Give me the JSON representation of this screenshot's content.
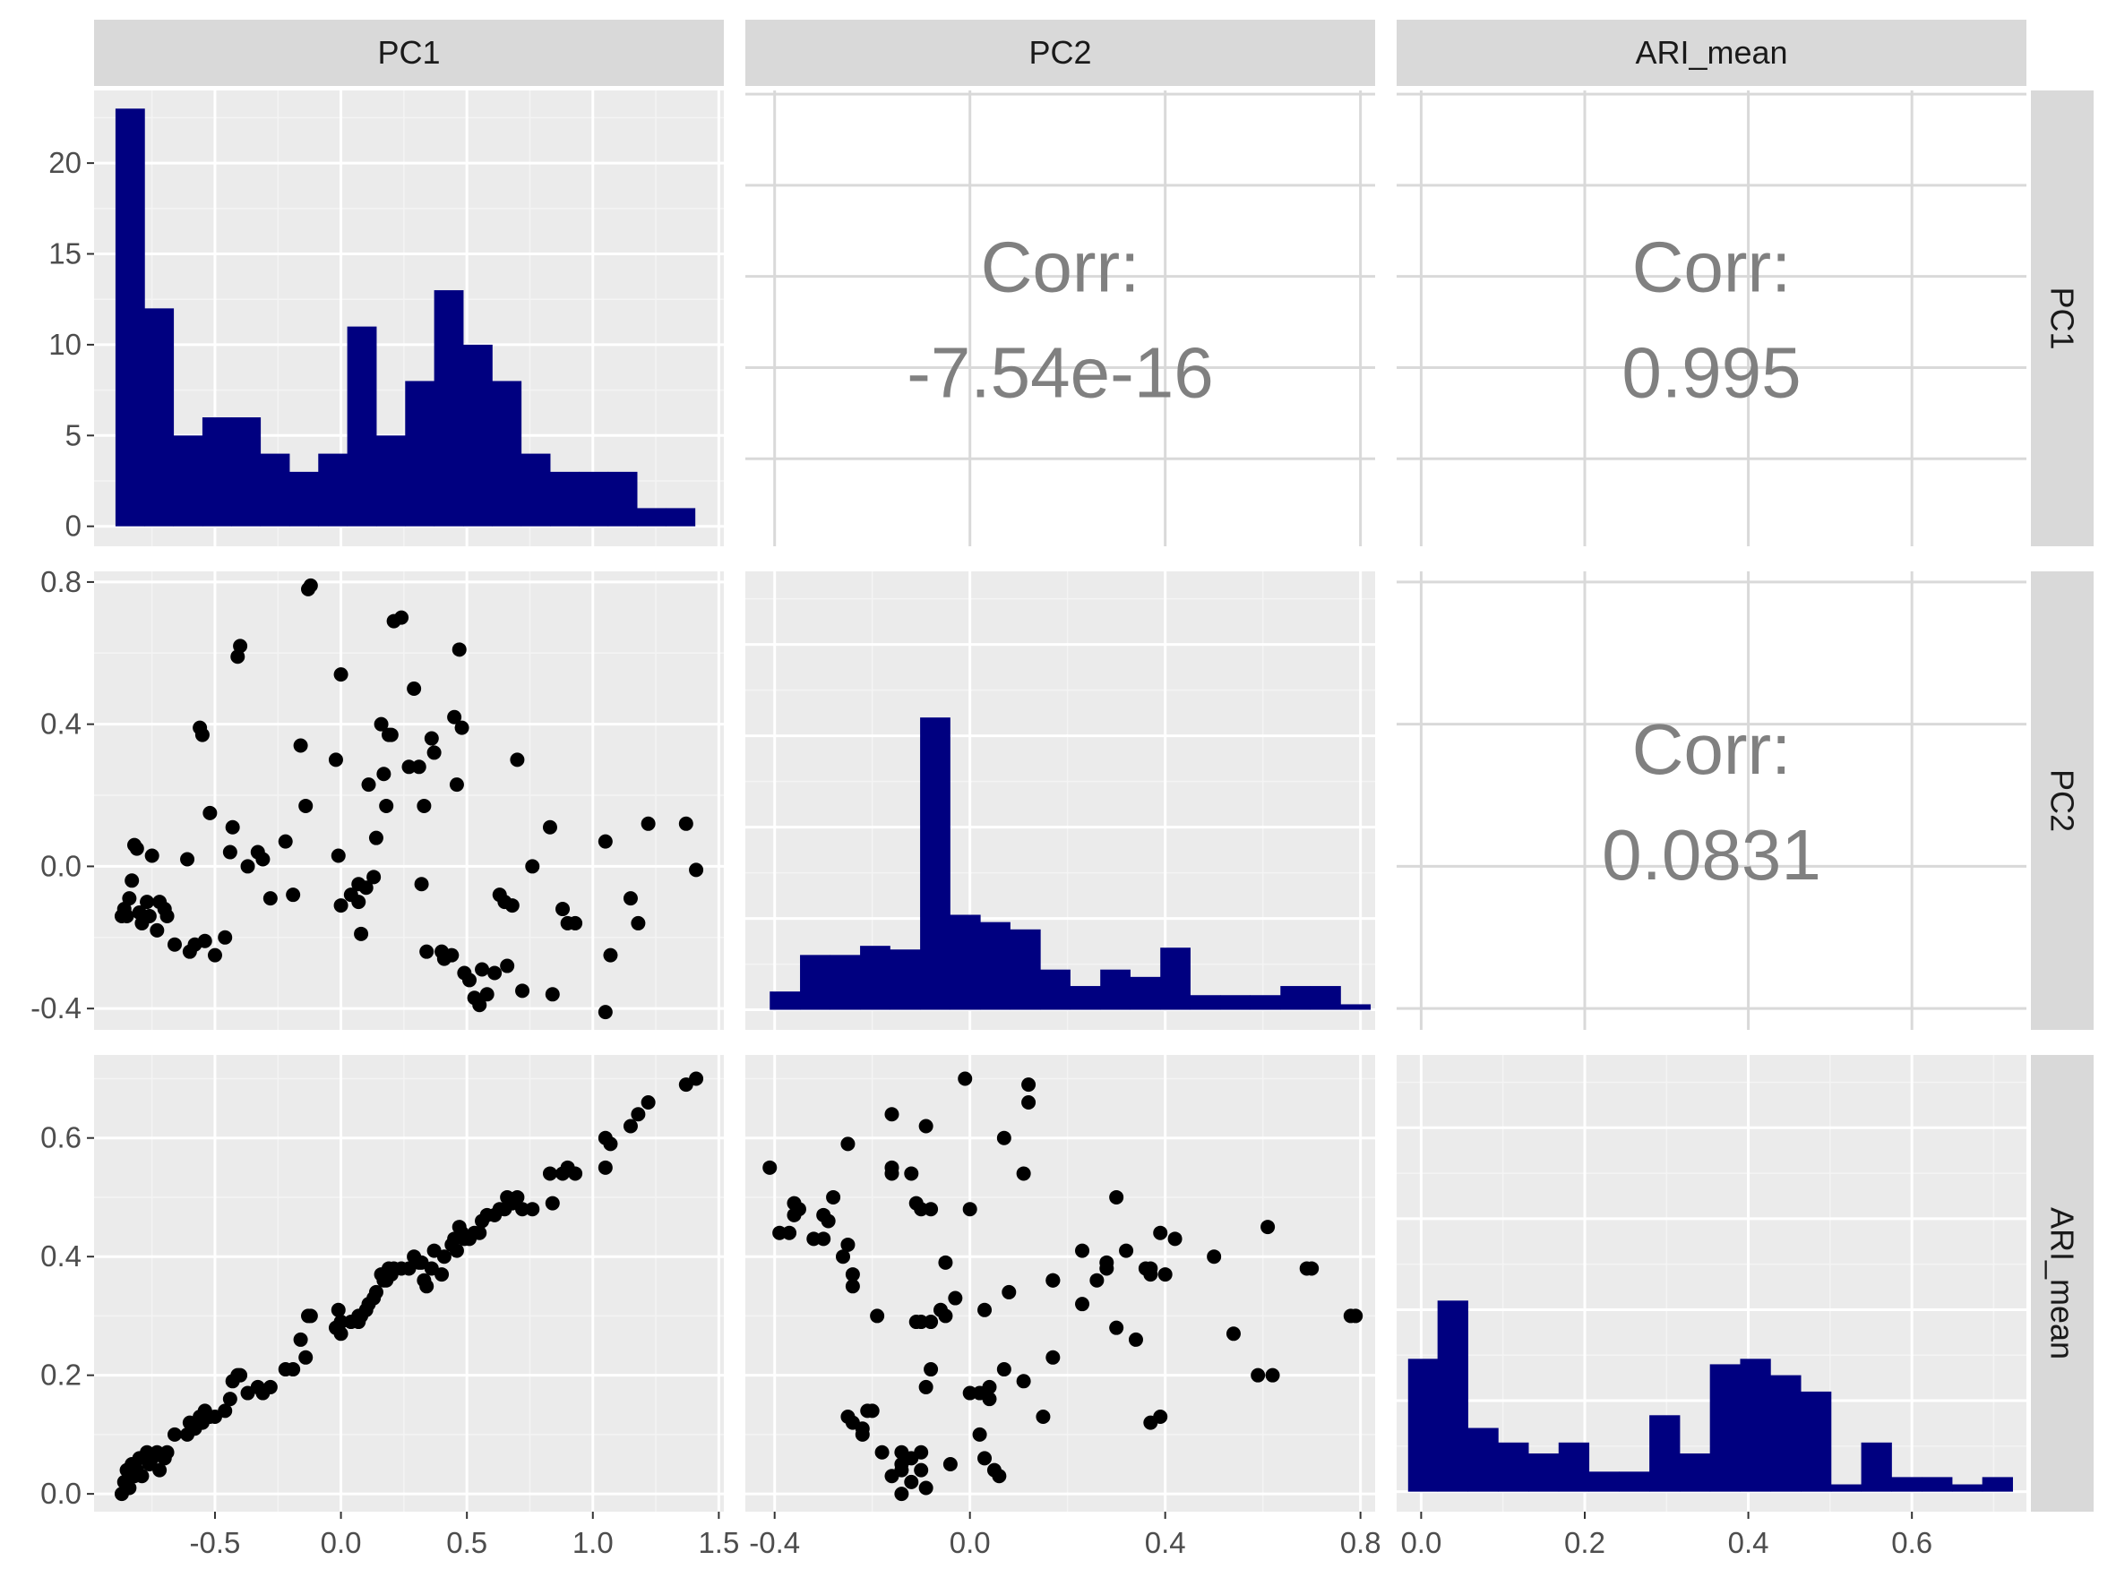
{
  "variables": [
    "PC1",
    "PC2",
    "ARI_mean"
  ],
  "colors": {
    "panel_bg": "#ebebeb",
    "grid_major": "#ffffff",
    "grid_minor": "#f4f4f4",
    "strip_bg": "#d9d9d9",
    "bar_fill": "#000080",
    "point": "#000000",
    "corr_text": "#808080",
    "axis_text": "#4d4d4d",
    "upper_grid": "#d9d9d9"
  },
  "axes": {
    "PC1": {
      "range": [
        -0.98,
        1.52
      ],
      "ticks": [
        -0.5,
        0.0,
        0.5,
        1.0,
        1.5
      ],
      "tick_labels": [
        "-0.5",
        "0.0",
        "0.5",
        "1.0",
        "1.5"
      ]
    },
    "PC2": {
      "range": [
        -0.46,
        0.83
      ],
      "ticks": [
        -0.4,
        0.0,
        0.4,
        0.8
      ],
      "tick_labels": [
        "-0.4",
        "0.0",
        "0.4",
        "0.8"
      ]
    },
    "ARI_mean": {
      "range": [
        -0.03,
        0.74
      ],
      "ticks": [
        0.0,
        0.2,
        0.4,
        0.6
      ],
      "tick_labels": [
        "0.0",
        "0.2",
        "0.4",
        "0.6"
      ]
    }
  },
  "hist_count_axis": {
    "range": [
      -1.1,
      24.0
    ],
    "ticks": [
      0,
      5,
      10,
      15,
      20
    ],
    "tick_labels": [
      "0",
      "5",
      "10",
      "15",
      "20"
    ]
  },
  "chart_data": {
    "type": "scatter",
    "layout": "pairs-matrix",
    "correlations": [
      {
        "row": "PC1",
        "col": "PC2",
        "label": "Corr:",
        "value": "-7.54e-16"
      },
      {
        "row": "PC1",
        "col": "ARI_mean",
        "label": "Corr:",
        "value": "0.995"
      },
      {
        "row": "PC2",
        "col": "ARI_mean",
        "label": "Corr:",
        "value": "0.0831"
      }
    ],
    "histograms": {
      "PC1": {
        "bins": [
          [
            -0.895,
            -0.78,
            23
          ],
          [
            -0.78,
            -0.665,
            12
          ],
          [
            -0.665,
            -0.55,
            5
          ],
          [
            -0.55,
            -0.435,
            6
          ],
          [
            -0.435,
            -0.32,
            6
          ],
          [
            -0.32,
            -0.205,
            4
          ],
          [
            -0.205,
            -0.09,
            3
          ],
          [
            -0.09,
            0.025,
            4
          ],
          [
            0.025,
            0.14,
            11
          ],
          [
            0.14,
            0.255,
            5
          ],
          [
            0.255,
            0.37,
            8
          ],
          [
            0.37,
            0.485,
            13
          ],
          [
            0.485,
            0.6,
            10
          ],
          [
            0.6,
            0.715,
            8
          ],
          [
            0.715,
            0.83,
            4
          ],
          [
            0.83,
            0.945,
            3
          ],
          [
            0.945,
            1.06,
            3
          ],
          [
            1.06,
            1.175,
            3
          ],
          [
            1.175,
            1.29,
            1
          ],
          [
            1.29,
            1.405,
            1
          ]
        ]
      },
      "PC2": {
        "bins": [
          [
            -0.41,
            -0.348,
            1
          ],
          [
            -0.348,
            -0.287,
            3
          ],
          [
            -0.287,
            -0.225,
            3
          ],
          [
            -0.225,
            -0.164,
            3.5
          ],
          [
            -0.164,
            -0.102,
            3.3
          ],
          [
            -0.102,
            -0.041,
            16
          ],
          [
            -0.041,
            0.021,
            5.2
          ],
          [
            0.021,
            0.082,
            4.8
          ],
          [
            0.082,
            0.144,
            4.4
          ],
          [
            0.144,
            0.205,
            2.2
          ],
          [
            0.205,
            0.267,
            1.3
          ],
          [
            0.267,
            0.328,
            2.2
          ],
          [
            0.328,
            0.39,
            1.8
          ],
          [
            0.39,
            0.451,
            3.4
          ],
          [
            0.451,
            0.513,
            0.8
          ],
          [
            0.513,
            0.574,
            0.8
          ],
          [
            0.574,
            0.636,
            0.8
          ],
          [
            0.636,
            0.697,
            1.3
          ],
          [
            0.697,
            0.759,
            1.3
          ],
          [
            0.759,
            0.82,
            0.3
          ]
        ]
      },
      "ARI_mean": {
        "bins": [
          [
            -0.016,
            0.02,
            7.3
          ],
          [
            0.02,
            0.057,
            10.5
          ],
          [
            0.057,
            0.094,
            3.5
          ],
          [
            0.094,
            0.131,
            2.7
          ],
          [
            0.131,
            0.168,
            2.1
          ],
          [
            0.168,
            0.205,
            2.7
          ],
          [
            0.205,
            0.242,
            1.1
          ],
          [
            0.242,
            0.279,
            1.1
          ],
          [
            0.279,
            0.316,
            4.2
          ],
          [
            0.316,
            0.353,
            2.1
          ],
          [
            0.353,
            0.39,
            7.0
          ],
          [
            0.39,
            0.427,
            7.3
          ],
          [
            0.427,
            0.464,
            6.4
          ],
          [
            0.464,
            0.501,
            5.5
          ],
          [
            0.501,
            0.538,
            0.4
          ],
          [
            0.538,
            0.575,
            2.7
          ],
          [
            0.575,
            0.612,
            0.8
          ],
          [
            0.612,
            0.649,
            0.8
          ],
          [
            0.649,
            0.686,
            0.4
          ],
          [
            0.686,
            0.723,
            0.8
          ]
        ]
      }
    },
    "points": [
      [
        -0.87,
        -0.14,
        0.0
      ],
      [
        -0.86,
        -0.12,
        0.02
      ],
      [
        -0.85,
        -0.14,
        0.04
      ],
      [
        -0.84,
        -0.09,
        0.01
      ],
      [
        -0.83,
        -0.04,
        0.05
      ],
      [
        -0.82,
        0.06,
        0.03
      ],
      [
        -0.81,
        0.05,
        0.04
      ],
      [
        -0.8,
        -0.13,
        0.06
      ],
      [
        -0.79,
        -0.16,
        0.03
      ],
      [
        -0.77,
        -0.1,
        0.07
      ],
      [
        -0.76,
        -0.14,
        0.05
      ],
      [
        -0.75,
        0.03,
        0.06
      ],
      [
        -0.73,
        -0.18,
        0.07
      ],
      [
        -0.72,
        -0.1,
        0.04
      ],
      [
        -0.7,
        -0.12,
        0.06
      ],
      [
        -0.69,
        -0.14,
        0.07
      ],
      [
        -0.66,
        -0.22,
        0.1
      ],
      [
        -0.61,
        0.02,
        0.1
      ],
      [
        -0.6,
        -0.24,
        0.12
      ],
      [
        -0.58,
        -0.22,
        0.11
      ],
      [
        -0.56,
        0.39,
        0.13
      ],
      [
        -0.55,
        0.37,
        0.12
      ],
      [
        -0.54,
        -0.21,
        0.14
      ],
      [
        -0.52,
        0.15,
        0.13
      ],
      [
        -0.5,
        -0.25,
        0.13
      ],
      [
        -0.46,
        -0.2,
        0.14
      ],
      [
        -0.43,
        0.11,
        0.19
      ],
      [
        -0.44,
        0.04,
        0.16
      ],
      [
        -0.41,
        0.59,
        0.2
      ],
      [
        -0.4,
        0.62,
        0.2
      ],
      [
        -0.37,
        0.0,
        0.17
      ],
      [
        -0.33,
        0.04,
        0.18
      ],
      [
        -0.31,
        0.02,
        0.17
      ],
      [
        -0.28,
        -0.09,
        0.18
      ],
      [
        -0.22,
        0.07,
        0.21
      ],
      [
        -0.19,
        -0.08,
        0.21
      ],
      [
        -0.16,
        0.34,
        0.26
      ],
      [
        -0.14,
        0.17,
        0.23
      ],
      [
        -0.13,
        0.78,
        0.3
      ],
      [
        -0.12,
        0.79,
        0.3
      ],
      [
        -0.02,
        0.3,
        0.28
      ],
      [
        -0.01,
        0.03,
        0.31
      ],
      [
        0.0,
        0.54,
        0.27
      ],
      [
        0.0,
        -0.11,
        0.29
      ],
      [
        0.04,
        -0.08,
        0.29
      ],
      [
        0.07,
        -0.1,
        0.29
      ],
      [
        0.07,
        -0.05,
        0.3
      ],
      [
        0.08,
        -0.19,
        0.3
      ],
      [
        0.1,
        -0.06,
        0.31
      ],
      [
        0.11,
        0.23,
        0.32
      ],
      [
        0.13,
        -0.03,
        0.33
      ],
      [
        0.14,
        0.08,
        0.34
      ],
      [
        0.16,
        0.4,
        0.37
      ],
      [
        0.17,
        0.26,
        0.36
      ],
      [
        0.18,
        0.17,
        0.36
      ],
      [
        0.19,
        0.37,
        0.38
      ],
      [
        0.2,
        0.37,
        0.37
      ],
      [
        0.21,
        0.69,
        0.38
      ],
      [
        0.24,
        0.7,
        0.38
      ],
      [
        0.27,
        0.28,
        0.38
      ],
      [
        0.29,
        0.5,
        0.4
      ],
      [
        0.31,
        0.28,
        0.39
      ],
      [
        0.32,
        -0.05,
        0.39
      ],
      [
        0.33,
        0.17,
        0.36
      ],
      [
        0.34,
        -0.24,
        0.35
      ],
      [
        0.36,
        0.36,
        0.38
      ],
      [
        0.37,
        0.32,
        0.41
      ],
      [
        0.4,
        -0.24,
        0.37
      ],
      [
        0.41,
        -0.26,
        0.4
      ],
      [
        0.44,
        -0.25,
        0.42
      ],
      [
        0.45,
        0.42,
        0.43
      ],
      [
        0.46,
        0.23,
        0.41
      ],
      [
        0.47,
        0.61,
        0.45
      ],
      [
        0.48,
        0.39,
        0.44
      ],
      [
        0.49,
        -0.3,
        0.43
      ],
      [
        0.51,
        -0.32,
        0.43
      ],
      [
        0.53,
        -0.37,
        0.44
      ],
      [
        0.55,
        -0.39,
        0.44
      ],
      [
        0.56,
        -0.29,
        0.46
      ],
      [
        0.58,
        -0.36,
        0.47
      ],
      [
        0.61,
        -0.3,
        0.47
      ],
      [
        0.63,
        -0.08,
        0.48
      ],
      [
        0.65,
        -0.1,
        0.48
      ],
      [
        0.66,
        -0.28,
        0.5
      ],
      [
        0.68,
        -0.11,
        0.49
      ],
      [
        0.7,
        0.3,
        0.5
      ],
      [
        0.72,
        -0.35,
        0.48
      ],
      [
        0.76,
        0.0,
        0.48
      ],
      [
        0.83,
        0.11,
        0.54
      ],
      [
        0.84,
        -0.36,
        0.49
      ],
      [
        0.88,
        -0.12,
        0.54
      ],
      [
        0.9,
        -0.16,
        0.55
      ],
      [
        0.93,
        -0.16,
        0.54
      ],
      [
        1.05,
        0.07,
        0.6
      ],
      [
        1.05,
        -0.41,
        0.55
      ],
      [
        1.07,
        -0.25,
        0.59
      ],
      [
        1.15,
        -0.09,
        0.62
      ],
      [
        1.18,
        -0.16,
        0.64
      ],
      [
        1.22,
        0.12,
        0.66
      ],
      [
        1.37,
        0.12,
        0.69
      ],
      [
        1.41,
        -0.01,
        0.7
      ]
    ]
  }
}
